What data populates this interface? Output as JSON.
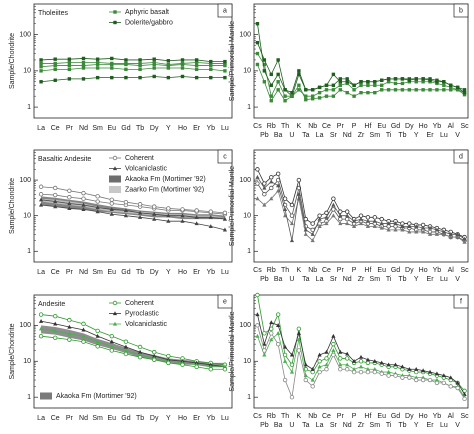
{
  "chart_data": [
    {
      "type": "line",
      "panel": "a",
      "title": "Tholeiites",
      "ylabel": "Sample/Chondrite",
      "log": true,
      "categories": [
        "La",
        "Ce",
        "Pr",
        "Nd",
        "Sm",
        "Eu",
        "Gd",
        "Tb",
        "Dy",
        "Y",
        "Ho",
        "Er",
        "Yb",
        "Lu"
      ],
      "ylim": [
        0.5,
        700
      ],
      "yticks": [
        1,
        10,
        100
      ],
      "series": [
        {
          "name": "Aphyric basalt",
          "color": "#3a8a3a",
          "marker": "square",
          "values": [
            13,
            14,
            14,
            14,
            15,
            15,
            15,
            14,
            15,
            14,
            15,
            14,
            14,
            14
          ]
        },
        {
          "color": "#3a8a3a",
          "marker": "square",
          "values": [
            10,
            11,
            11,
            12,
            12,
            12,
            11,
            11,
            12,
            12,
            12,
            11,
            11,
            10
          ]
        },
        {
          "color": "#3a8a3a",
          "marker": "square",
          "values": [
            16,
            16,
            17,
            17,
            17,
            16,
            16,
            16,
            17,
            15,
            16,
            17,
            16,
            16
          ]
        },
        {
          "name": "Dolerite/gabbro",
          "color": "#1f5e1f",
          "marker": "square",
          "values": [
            5,
            5.5,
            6,
            6,
            6.5,
            6.5,
            6.5,
            6.5,
            7,
            6.5,
            7,
            6.5,
            6.5,
            6.5
          ]
        },
        {
          "color": "#1f5e1f",
          "marker": "square",
          "values": [
            20,
            21,
            21,
            22,
            21,
            22,
            20,
            20,
            21,
            19,
            20,
            20,
            18,
            18
          ]
        }
      ]
    },
    {
      "type": "line",
      "panel": "b",
      "ylabel": "Sample/Primordial Mantle",
      "log": true,
      "categories": [
        "Cs",
        "Pb",
        "Rb",
        "Ba",
        "Th",
        "U",
        "K",
        "Ta",
        "Nb",
        "La",
        "Ce",
        "Sr",
        "Pr",
        "Nd",
        "P",
        "Zr",
        "Hf",
        "Sm",
        "Eu",
        "Ti",
        "Gd",
        "Tb",
        "Dy",
        "Y",
        "Ho",
        "Er",
        "Yb",
        "Lu",
        "Al",
        "V",
        "Sc"
      ],
      "ylim": [
        0.5,
        700
      ],
      "yticks": [
        1,
        10,
        100
      ],
      "series": [
        {
          "color": "#3a8a3a",
          "marker": "square",
          "values": [
            30,
            15,
            2,
            5,
            2,
            2,
            3,
            2,
            2,
            2.5,
            3,
            3,
            4,
            4.5,
            3,
            4,
            4,
            4,
            4,
            5,
            4.5,
            4.5,
            5,
            5,
            5,
            5,
            4.5,
            4,
            3.5,
            3,
            2.5
          ]
        },
        {
          "color": "#1f5e1f",
          "marker": "square",
          "values": [
            200,
            10,
            4,
            8,
            3,
            2,
            8,
            3,
            3,
            3.5,
            4,
            4,
            6,
            6,
            4,
            5,
            5,
            5,
            5.5,
            6,
            6,
            6,
            6,
            6,
            6,
            6,
            5.5,
            5,
            4,
            3.5,
            3
          ]
        },
        {
          "color": "#3a8a3a",
          "marker": "square",
          "values": [
            15,
            5,
            1.5,
            3,
            1.5,
            2,
            4,
            1.6,
            1.7,
            1.8,
            2,
            2,
            3,
            2.5,
            2,
            2.5,
            2.5,
            2.5,
            3,
            3,
            3,
            3,
            3,
            3,
            3,
            3,
            3,
            3,
            3,
            3,
            2.2
          ]
        },
        {
          "color": "#1f5e1f",
          "marker": "square",
          "values": [
            60,
            20,
            8,
            20,
            3,
            2.5,
            10,
            3,
            3,
            3.5,
            4,
            8,
            5,
            5,
            4,
            5,
            5,
            5,
            5.5,
            6,
            6,
            6,
            5.5,
            6,
            6,
            5.5,
            5,
            5,
            4,
            3.5,
            2.5
          ]
        }
      ]
    },
    {
      "type": "line",
      "panel": "c",
      "title": "Basaltic Andesite",
      "ylabel": "Sample/Chondrite",
      "log": true,
      "categories": [
        "La",
        "Ce",
        "Pr",
        "Nd",
        "Sm",
        "Eu",
        "Gd",
        "Tb",
        "Dy",
        "Y",
        "Ho",
        "Er",
        "Yb",
        "Lu"
      ],
      "ylim": [
        0.5,
        700
      ],
      "yticks": [
        1,
        10,
        100
      ],
      "fields": [
        {
          "name": "Akaoka Fm (Mortimer '92)",
          "color": "#6e6e6e",
          "low": [
            20,
            18,
            16,
            15,
            13,
            12,
            11,
            10,
            9,
            9,
            8,
            8,
            8,
            8
          ],
          "high": [
            35,
            32,
            28,
            25,
            21,
            18,
            16,
            14,
            13,
            12,
            12,
            11,
            11,
            10
          ]
        },
        {
          "name": "Zaarko Fm (Mortimer '92)",
          "color": "#c8c8c8",
          "low": [
            25,
            22,
            20,
            18,
            15,
            13,
            12,
            11,
            10,
            10,
            9,
            9,
            9,
            9
          ],
          "high": [
            30,
            28,
            25,
            22,
            18,
            15,
            14,
            13,
            12,
            11,
            11,
            10,
            10,
            9
          ]
        }
      ],
      "series": [
        {
          "name": "Coherent",
          "color": "#777777",
          "marker": "circle",
          "values": [
            40,
            38,
            33,
            30,
            25,
            22,
            20,
            18,
            16,
            14,
            14,
            13,
            12,
            11
          ]
        },
        {
          "color": "#777777",
          "marker": "circle",
          "values": [
            65,
            60,
            50,
            43,
            35,
            28,
            24,
            21,
            18,
            16,
            15,
            14,
            13,
            12
          ]
        },
        {
          "name": "Volcaniclastic",
          "color": "#444444",
          "marker": "triangle",
          "values": [
            28,
            25,
            22,
            20,
            17,
            15,
            14,
            12,
            11,
            10,
            10,
            9,
            9,
            8
          ]
        },
        {
          "color": "#444444",
          "marker": "triangle",
          "values": [
            20,
            18,
            16,
            15,
            13,
            11,
            10,
            9,
            8,
            7,
            7,
            6,
            5,
            4
          ]
        }
      ]
    },
    {
      "type": "line",
      "panel": "d",
      "ylabel": "Sample/Primordial Mantle",
      "log": true,
      "categories": [
        "Cs",
        "Pb",
        "Rb",
        "Ba",
        "Th",
        "U",
        "K",
        "Ta",
        "Nb",
        "La",
        "Ce",
        "Sr",
        "Pr",
        "Nd",
        "P",
        "Zr",
        "Hf",
        "Sm",
        "Eu",
        "Ti",
        "Gd",
        "Tb",
        "Dy",
        "Y",
        "Ho",
        "Er",
        "Yb",
        "Lu",
        "Al",
        "V",
        "Sc"
      ],
      "ylim": [
        0.5,
        700
      ],
      "yticks": [
        1,
        10,
        100
      ],
      "series": [
        {
          "color": "#555555",
          "marker": "circle",
          "values": [
            80,
            40,
            60,
            100,
            20,
            10,
            60,
            5,
            4,
            6,
            7,
            15,
            8,
            8,
            6,
            7,
            6,
            6,
            5,
            5,
            5,
            4.5,
            4.5,
            4,
            4,
            3.5,
            3.5,
            3,
            2.5,
            2.5,
            2
          ]
        },
        {
          "color": "#333333",
          "marker": "circle",
          "values": [
            200,
            80,
            120,
            150,
            30,
            20,
            100,
            8,
            6,
            10,
            12,
            30,
            13,
            13,
            8,
            10,
            9,
            9,
            8,
            7,
            7,
            6,
            6,
            5.5,
            5.5,
            5,
            4.5,
            4,
            3.5,
            3,
            2.5
          ]
        },
        {
          "color": "#777777",
          "marker": "triangle",
          "values": [
            30,
            20,
            30,
            50,
            10,
            6,
            30,
            3,
            2,
            5,
            6,
            10,
            6,
            6,
            5,
            6,
            5,
            5,
            4.5,
            4,
            4,
            4,
            3.5,
            3.5,
            3.5,
            3,
            3,
            3,
            2.5,
            2.5,
            1.8
          ]
        },
        {
          "color": "#555555",
          "marker": "triangle",
          "values": [
            120,
            60,
            90,
            70,
            15,
            2,
            40,
            4,
            3,
            8,
            9,
            20,
            10,
            10,
            7,
            8,
            7,
            7,
            6,
            6,
            6,
            5,
            5,
            5,
            4.5,
            4.5,
            4,
            3.5,
            3,
            3,
            2.2
          ]
        }
      ]
    },
    {
      "type": "line",
      "panel": "e",
      "title": "Andesite",
      "ylabel": "Sample/Chondrite",
      "log": true,
      "categories": [
        "La",
        "Ce",
        "Pr",
        "Nd",
        "Sm",
        "Eu",
        "Gd",
        "Tb",
        "Dy",
        "Y",
        "Ho",
        "Er",
        "Yb",
        "Lu"
      ],
      "ylim": [
        0.5,
        700
      ],
      "yticks": [
        1,
        10,
        100
      ],
      "fields": [
        {
          "name": "Akaoka Fm (Mortimer '92)",
          "color": "#7a7a7a",
          "low": [
            60,
            55,
            45,
            38,
            28,
            22,
            17,
            13,
            11,
            9,
            8,
            8,
            7,
            7
          ],
          "high": [
            100,
            90,
            75,
            60,
            42,
            32,
            24,
            18,
            15,
            12,
            11,
            10,
            9,
            9
          ]
        }
      ],
      "series": [
        {
          "name": "Coherent",
          "color": "#2e9a2e",
          "marker": "circle",
          "values": [
            200,
            180,
            140,
            110,
            70,
            50,
            35,
            25,
            18,
            14,
            12,
            10,
            9,
            8
          ]
        },
        {
          "name": "Pyroclastic",
          "color": "#333333",
          "marker": "triangle",
          "values": [
            130,
            110,
            90,
            75,
            50,
            35,
            25,
            18,
            14,
            11,
            10,
            9,
            8,
            7
          ]
        },
        {
          "name": "Volcaniclastic",
          "color": "#4caf50",
          "marker": "triangle",
          "values": [
            80,
            70,
            58,
            50,
            35,
            26,
            20,
            15,
            12,
            10,
            9,
            8,
            7,
            7
          ]
        },
        {
          "color": "#2e9a2e",
          "marker": "circle",
          "values": [
            50,
            45,
            40,
            35,
            26,
            20,
            16,
            13,
            11,
            9,
            8,
            7,
            6,
            6
          ]
        }
      ]
    },
    {
      "type": "line",
      "panel": "f",
      "ylabel": "Sample/Primordial Mantle",
      "log": true,
      "categories": [
        "Cs",
        "Pb",
        "Rb",
        "Ba",
        "Th",
        "U",
        "K",
        "Ta",
        "Nb",
        "La",
        "Ce",
        "Sr",
        "Pr",
        "Nd",
        "P",
        "Zr",
        "Hf",
        "Sm",
        "Eu",
        "Ti",
        "Gd",
        "Tb",
        "Dy",
        "Y",
        "Ho",
        "Er",
        "Yb",
        "Lu",
        "Al",
        "V",
        "Sc"
      ],
      "ylim": [
        0.5,
        700
      ],
      "yticks": [
        1,
        10,
        100
      ],
      "series": [
        {
          "color": "#2e9a2e",
          "marker": "circle",
          "values": [
            700,
            60,
            80,
            200,
            15,
            8,
            80,
            6,
            5,
            10,
            12,
            30,
            12,
            12,
            9,
            10,
            9,
            9,
            8,
            7,
            7,
            6,
            5.5,
            5,
            5,
            4.5,
            4,
            3.5,
            3,
            2.5,
            1.5
          ]
        },
        {
          "color": "#333333",
          "marker": "triangle",
          "values": [
            200,
            30,
            120,
            100,
            25,
            15,
            60,
            8,
            6,
            15,
            18,
            50,
            18,
            16,
            10,
            13,
            11,
            10,
            9,
            8,
            8,
            7,
            6,
            6,
            5.5,
            5,
            4.5,
            4,
            3.5,
            2.5,
            1.2
          ]
        },
        {
          "color": "#4caf50",
          "marker": "triangle",
          "values": [
            50,
            15,
            40,
            60,
            10,
            5,
            40,
            4,
            3,
            7,
            8,
            20,
            8,
            8,
            6,
            7,
            6,
            6,
            5,
            5,
            4.5,
            4,
            4,
            3.5,
            3.5,
            3,
            3,
            2.5,
            2,
            2,
            1
          ]
        },
        {
          "color": "#888888",
          "marker": "circle",
          "values": [
            100,
            20,
            60,
            30,
            3,
            1,
            20,
            3,
            2,
            5,
            6,
            15,
            6,
            6,
            5,
            5,
            5,
            5,
            4.5,
            4,
            4,
            3.5,
            3.5,
            3,
            3,
            3,
            2.5,
            2.5,
            2,
            1.8,
            0.9
          ]
        }
      ]
    }
  ]
}
